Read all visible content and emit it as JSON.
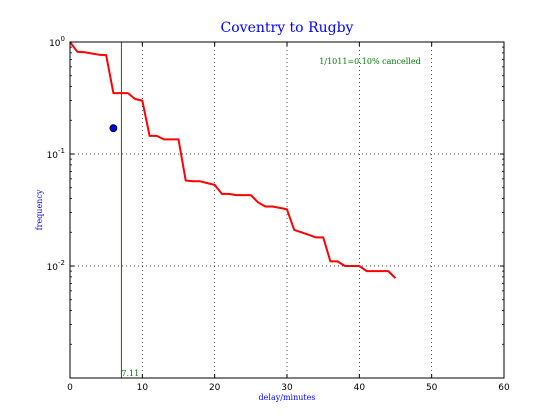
{
  "chart_data": {
    "type": "line",
    "title": "Coventry to Rugby",
    "xlabel": "delay/minutes",
    "ylabel": "frequency",
    "xlim": [
      0,
      60
    ],
    "ylim": [
      0.001,
      1.0
    ],
    "yscale": "log",
    "grid": true,
    "x_ticks": [
      0,
      10,
      20,
      30,
      40,
      50,
      60
    ],
    "x_tick_labels": [
      "0",
      "10",
      "20",
      "30",
      "40",
      "50",
      "60"
    ],
    "y_ticks": [
      1,
      0.1,
      0.01
    ],
    "y_tick_labels": [
      {
        "base": "10",
        "exp": "0"
      },
      {
        "base": "10",
        "exp": "-1"
      },
      {
        "base": "10",
        "exp": "-2"
      }
    ],
    "annotation": "1/1011=0.10% cancelled",
    "series": [
      {
        "color": "#ff0000",
        "x": [
          0,
          1,
          2,
          3,
          4,
          5,
          6,
          7,
          8,
          9,
          10,
          11,
          12,
          13,
          14,
          15,
          16,
          17,
          18,
          19,
          20,
          21,
          22,
          23,
          24,
          25,
          26,
          27,
          28,
          29,
          30,
          31,
          32,
          33,
          34,
          35,
          36,
          37,
          38,
          39,
          40,
          41,
          42,
          43,
          44,
          45
        ],
        "y": [
          1.0,
          0.82,
          0.81,
          0.79,
          0.77,
          0.76,
          0.35,
          0.35,
          0.35,
          0.31,
          0.3,
          0.145,
          0.145,
          0.135,
          0.135,
          0.135,
          0.058,
          0.057,
          0.057,
          0.055,
          0.053,
          0.044,
          0.044,
          0.043,
          0.043,
          0.043,
          0.037,
          0.034,
          0.034,
          0.033,
          0.032,
          0.021,
          0.02,
          0.019,
          0.018,
          0.018,
          0.011,
          0.011,
          0.01,
          0.01,
          0.01,
          0.009,
          0.009,
          0.009,
          0.009,
          0.0078
        ]
      }
    ],
    "mean_marker": {
      "x": 6,
      "y": 0.17,
      "color": "#0000ff"
    },
    "vline": {
      "x": 7.11,
      "label": "7.11",
      "color": "#007700"
    }
  }
}
